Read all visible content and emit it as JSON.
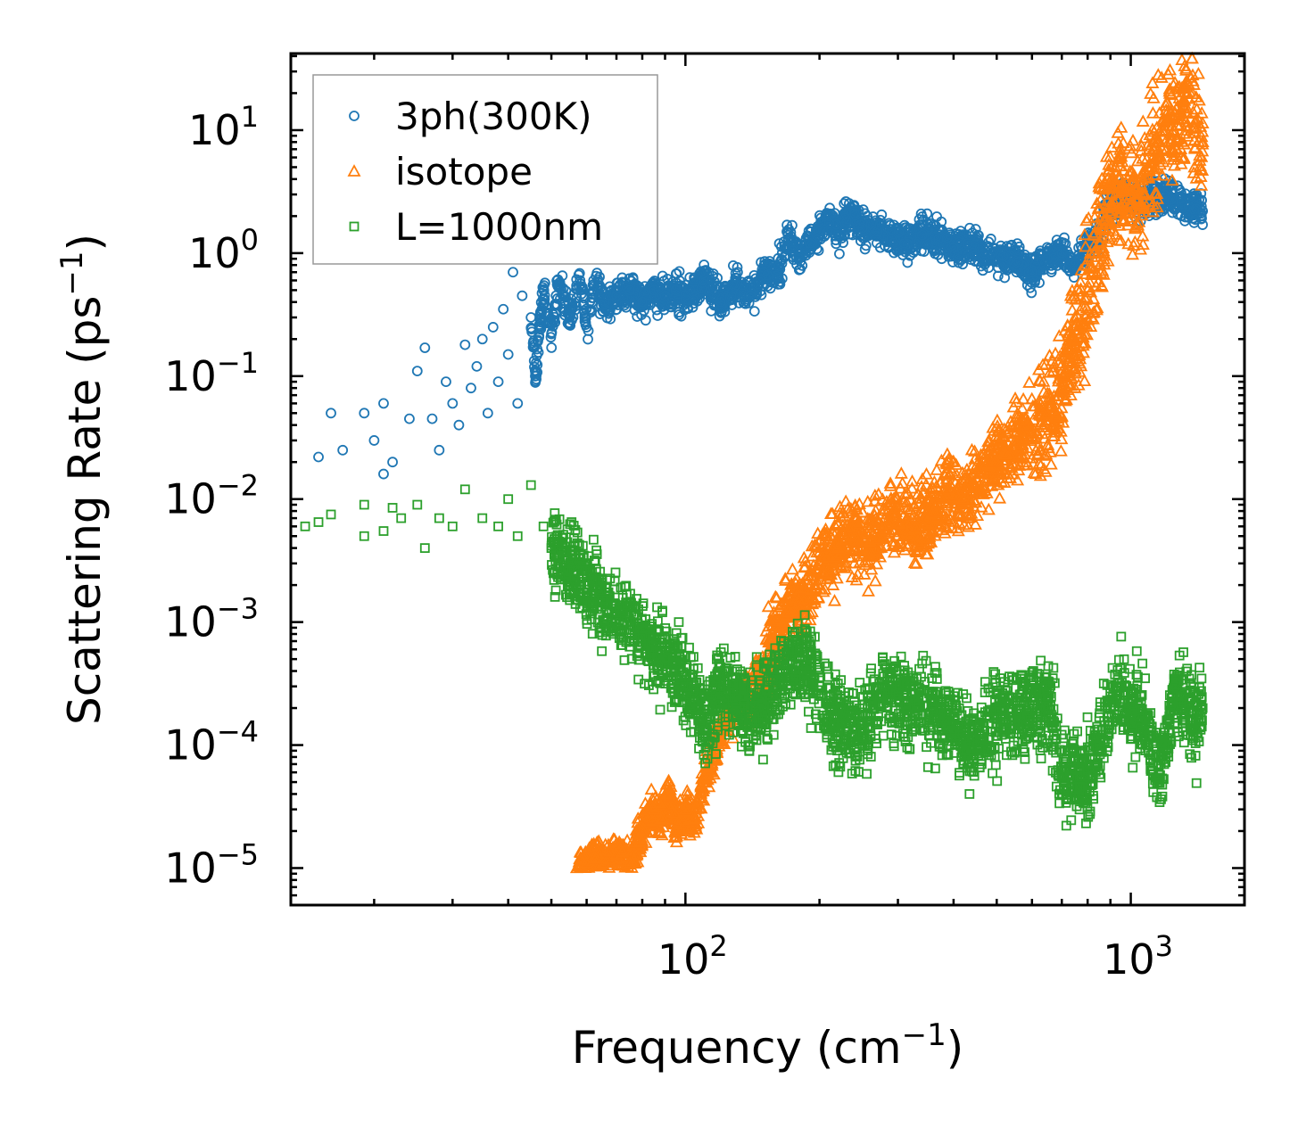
{
  "chart_data": {
    "type": "scatter",
    "xscale": "log",
    "yscale": "log",
    "xlabel": "Frequency (cm",
    "xlabel_sup": "−1",
    "xlabel_end": ")",
    "ylabel": "Scattering Rate (ps",
    "ylabel_sup": "−1",
    "ylabel_end": ")",
    "xlim": [
      13,
      1800
    ],
    "ylim": [
      5e-06,
      42
    ],
    "legend_placement": "top-left",
    "x_ticks": [
      {
        "value": 100,
        "base": "10",
        "exp": "2"
      },
      {
        "value": 1000,
        "base": "10",
        "exp": "3"
      }
    ],
    "y_ticks": [
      {
        "value": 1e-05,
        "base": "10",
        "exp": "−5"
      },
      {
        "value": 0.0001,
        "base": "10",
        "exp": "−4"
      },
      {
        "value": 0.001,
        "base": "10",
        "exp": "−3"
      },
      {
        "value": 0.01,
        "base": "10",
        "exp": "−2"
      },
      {
        "value": 0.1,
        "base": "10",
        "exp": "−1"
      },
      {
        "value": 1,
        "base": "10",
        "exp": "0"
      },
      {
        "value": 10,
        "base": "10",
        "exp": "1"
      }
    ],
    "series": [
      {
        "name": "3ph(300K)",
        "marker": "circle",
        "color": "#1f77b4",
        "points": [
          [
            15,
            0.022
          ],
          [
            16,
            0.05
          ],
          [
            17,
            0.025
          ],
          [
            19,
            0.05
          ],
          [
            20,
            0.03
          ],
          [
            21,
            0.016
          ],
          [
            21,
            0.06
          ],
          [
            22,
            0.02
          ],
          [
            24,
            0.045
          ],
          [
            25,
            0.11
          ],
          [
            26,
            0.17
          ],
          [
            27,
            0.045
          ],
          [
            28,
            0.025
          ],
          [
            29,
            0.09
          ],
          [
            30,
            0.06
          ],
          [
            31,
            0.04
          ],
          [
            32,
            0.18
          ],
          [
            33,
            0.08
          ],
          [
            34,
            0.12
          ],
          [
            35,
            0.2
          ],
          [
            36,
            0.05
          ],
          [
            37,
            0.25
          ],
          [
            38,
            0.09
          ],
          [
            39,
            0.35
          ],
          [
            40,
            0.15
          ],
          [
            41,
            0.7
          ],
          [
            42,
            0.06
          ],
          [
            43,
            0.45
          ],
          [
            45,
            0.3
          ],
          [
            46,
            0.1
          ],
          [
            48,
            0.5
          ],
          [
            50,
            0.22
          ],
          [
            52,
            0.55
          ],
          [
            55,
            0.3
          ],
          [
            58,
            0.6
          ],
          [
            60,
            0.25
          ],
          [
            63,
            0.65
          ],
          [
            66,
            0.35
          ],
          [
            70,
            0.45
          ],
          [
            75,
            0.5
          ],
          [
            80,
            0.4
          ],
          [
            85,
            0.5
          ],
          [
            90,
            0.45
          ],
          [
            95,
            0.5
          ],
          [
            100,
            0.42
          ],
          [
            110,
            0.6
          ],
          [
            120,
            0.4
          ],
          [
            130,
            0.55
          ],
          [
            140,
            0.45
          ],
          [
            150,
            0.7
          ],
          [
            160,
            0.65
          ],
          [
            170,
            1.4
          ],
          [
            180,
            0.9
          ],
          [
            190,
            1.2
          ],
          [
            200,
            1.5
          ],
          [
            210,
            2.0
          ],
          [
            220,
            1.4
          ],
          [
            230,
            1.8
          ],
          [
            240,
            2.1
          ],
          [
            250,
            1.6
          ],
          [
            270,
            1.5
          ],
          [
            290,
            1.3
          ],
          [
            310,
            1.2
          ],
          [
            340,
            1.4
          ],
          [
            370,
            1.3
          ],
          [
            400,
            1.1
          ],
          [
            430,
            1.2
          ],
          [
            470,
            1.0
          ],
          [
            510,
            0.95
          ],
          [
            560,
            0.85
          ],
          [
            600,
            0.7
          ],
          [
            650,
            0.9
          ],
          [
            700,
            1.0
          ],
          [
            750,
            0.8
          ],
          [
            800,
            1.1
          ],
          [
            850,
            1.5
          ],
          [
            900,
            2.5
          ],
          [
            950,
            2.8
          ],
          [
            1000,
            2.9
          ],
          [
            1050,
            2.5
          ],
          [
            1100,
            3.0
          ],
          [
            1150,
            2.7
          ],
          [
            1200,
            3.1
          ],
          [
            1250,
            2.8
          ],
          [
            1300,
            2.6
          ],
          [
            1350,
            2.4
          ],
          [
            1400,
            2.3
          ],
          [
            1450,
            2.2
          ]
        ]
      },
      {
        "name": "isotope",
        "marker": "triangle",
        "color": "#ff7f0e",
        "points": [
          [
            57,
            1e-05
          ],
          [
            60,
            1.1e-05
          ],
          [
            63,
            1.2e-05
          ],
          [
            66,
            1.1e-05
          ],
          [
            70,
            1.3e-05
          ],
          [
            75,
            1.1e-05
          ],
          [
            80,
            2e-05
          ],
          [
            85,
            3e-05
          ],
          [
            88,
            2.5e-05
          ],
          [
            92,
            4e-05
          ],
          [
            95,
            2e-05
          ],
          [
            100,
            3e-05
          ],
          [
            105,
            2.5e-05
          ],
          [
            110,
            5e-05
          ],
          [
            115,
            8e-05
          ],
          [
            120,
            0.00012
          ],
          [
            125,
            0.0002
          ],
          [
            130,
            0.00018
          ],
          [
            135,
            0.0003
          ],
          [
            140,
            0.0002
          ],
          [
            145,
            0.00035
          ],
          [
            150,
            0.0004
          ],
          [
            160,
            0.0008
          ],
          [
            170,
            0.0012
          ],
          [
            180,
            0.0015
          ],
          [
            190,
            0.002
          ],
          [
            200,
            0.003
          ],
          [
            210,
            0.0035
          ],
          [
            220,
            0.004
          ],
          [
            240,
            0.005
          ],
          [
            260,
            0.0045
          ],
          [
            280,
            0.006
          ],
          [
            300,
            0.007
          ],
          [
            330,
            0.006
          ],
          [
            360,
            0.008
          ],
          [
            390,
            0.012
          ],
          [
            420,
            0.01
          ],
          [
            450,
            0.015
          ],
          [
            500,
            0.02
          ],
          [
            550,
            0.03
          ],
          [
            600,
            0.035
          ],
          [
            650,
            0.05
          ],
          [
            700,
            0.08
          ],
          [
            750,
            0.2
          ],
          [
            800,
            0.5
          ],
          [
            850,
            1.2
          ],
          [
            900,
            2.5
          ],
          [
            950,
            3.5
          ],
          [
            1000,
            3.0
          ],
          [
            1050,
            2.5
          ],
          [
            1100,
            5.0
          ],
          [
            1150,
            8.0
          ],
          [
            1200,
            12.0
          ],
          [
            1250,
            10.0
          ],
          [
            1300,
            15.0
          ],
          [
            1350,
            18.0
          ],
          [
            1400,
            12.0
          ],
          [
            1450,
            8.0
          ]
        ]
      },
      {
        "name": "L=1000nm",
        "marker": "square",
        "color": "#2ca02c",
        "points": [
          [
            14,
            0.006
          ],
          [
            15,
            0.0065
          ],
          [
            16,
            0.0075
          ],
          [
            19,
            0.005
          ],
          [
            19,
            0.009
          ],
          [
            21,
            0.0055
          ],
          [
            22,
            0.0085
          ],
          [
            23,
            0.007
          ],
          [
            25,
            0.009
          ],
          [
            26,
            0.004
          ],
          [
            28,
            0.007
          ],
          [
            30,
            0.006
          ],
          [
            32,
            0.012
          ],
          [
            35,
            0.007
          ],
          [
            38,
            0.006
          ],
          [
            40,
            0.01
          ],
          [
            42,
            0.005
          ],
          [
            45,
            0.013
          ],
          [
            48,
            0.006
          ],
          [
            50,
            0.004
          ],
          [
            55,
            0.003
          ],
          [
            60,
            0.002
          ],
          [
            65,
            0.0015
          ],
          [
            70,
            0.0012
          ],
          [
            75,
            0.001
          ],
          [
            80,
            0.0008
          ],
          [
            85,
            0.0006
          ],
          [
            90,
            0.0005
          ],
          [
            95,
            0.0004
          ],
          [
            100,
            0.0003
          ],
          [
            105,
            0.00025
          ],
          [
            110,
            0.00013
          ],
          [
            115,
            0.0002
          ],
          [
            120,
            0.0003
          ],
          [
            130,
            0.00022
          ],
          [
            140,
            0.0002
          ],
          [
            150,
            0.0002
          ],
          [
            160,
            0.0003
          ],
          [
            170,
            0.0004
          ],
          [
            180,
            0.0005
          ],
          [
            190,
            0.0004
          ],
          [
            200,
            0.0003
          ],
          [
            220,
            0.00015
          ],
          [
            250,
            0.00013
          ],
          [
            280,
            0.0003
          ],
          [
            300,
            0.00025
          ],
          [
            330,
            0.0002
          ],
          [
            360,
            0.0002
          ],
          [
            400,
            0.00015
          ],
          [
            440,
            9e-05
          ],
          [
            480,
            0.00015
          ],
          [
            520,
            0.0002
          ],
          [
            560,
            0.00018
          ],
          [
            600,
            0.0002
          ],
          [
            650,
            0.00025
          ],
          [
            700,
            5.5e-05
          ],
          [
            760,
            5.5e-05
          ],
          [
            800,
            5.5e-05
          ],
          [
            850,
            0.0001
          ],
          [
            900,
            0.0002
          ],
          [
            950,
            0.0003
          ],
          [
            1000,
            0.00018
          ],
          [
            1050,
            0.0002
          ],
          [
            1100,
            0.00012
          ],
          [
            1160,
            5e-05
          ],
          [
            1200,
            0.0001
          ],
          [
            1250,
            0.0003
          ],
          [
            1300,
            0.00025
          ],
          [
            1350,
            0.0002
          ],
          [
            1400,
            0.00015
          ],
          [
            1450,
            0.0002
          ]
        ]
      }
    ]
  }
}
